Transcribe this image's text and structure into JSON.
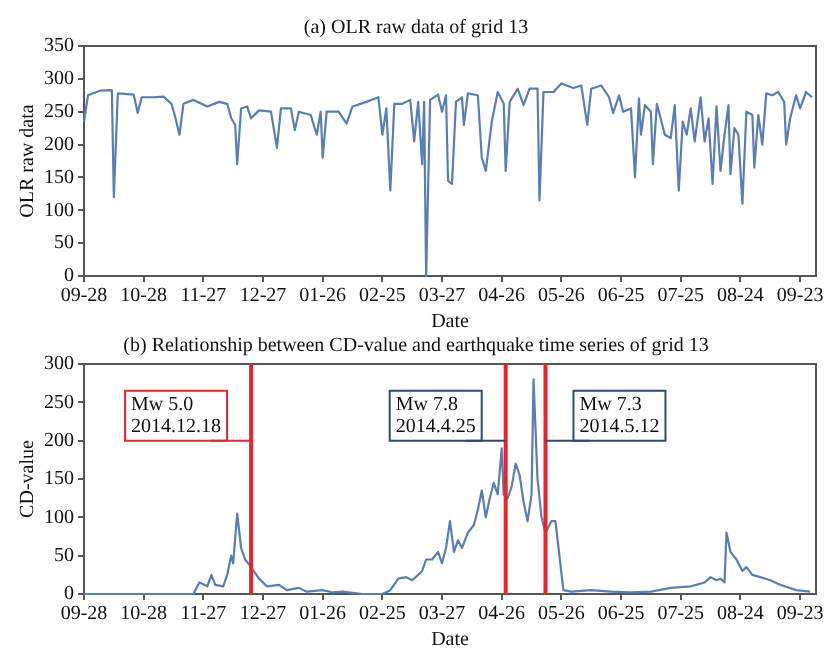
{
  "chart_data": [
    {
      "type": "line",
      "title": "(a) OLR raw data of grid 13",
      "xlabel": "Date",
      "ylabel": "OLR raw data",
      "xlim": [
        "2013-09-28",
        "2014-10-01"
      ],
      "xticks": [
        {
          "value": "2013-09-28",
          "label": "09-28"
        },
        {
          "value": "2013-10-28",
          "label": "10-28"
        },
        {
          "value": "2013-11-27",
          "label": "11-27"
        },
        {
          "value": "2013-12-27",
          "label": "12-27"
        },
        {
          "value": "2014-01-26",
          "label": "01-26"
        },
        {
          "value": "2014-02-25",
          "label": "02-25"
        },
        {
          "value": "2014-03-27",
          "label": "03-27"
        },
        {
          "value": "2014-04-26",
          "label": "04-26"
        },
        {
          "value": "2014-05-26",
          "label": "05-26"
        },
        {
          "value": "2014-06-25",
          "label": "06-25"
        },
        {
          "value": "2014-07-25",
          "label": "07-25"
        },
        {
          "value": "2014-08-24",
          "label": "08-24"
        },
        {
          "value": "2014-09-23",
          "label": "09-23"
        }
      ],
      "ylim": [
        0,
        350
      ],
      "yticks": [
        0,
        50,
        100,
        150,
        200,
        250,
        300,
        350
      ],
      "grid": false,
      "legend": false,
      "marker": "none",
      "series": [
        {
          "color": "#5a7db5",
          "x": [
            "2013-09-28",
            "2013-09-30",
            "2013-10-06",
            "2013-10-12",
            "2013-10-13",
            "2013-10-15",
            "2013-10-23",
            "2013-10-25",
            "2013-10-27",
            "2013-11-02",
            "2013-11-07",
            "2013-11-11",
            "2013-11-13",
            "2013-11-15",
            "2013-11-17",
            "2013-11-22",
            "2013-11-29",
            "2013-12-05",
            "2013-12-09",
            "2013-12-11",
            "2013-12-13",
            "2013-12-14",
            "2013-12-16",
            "2013-12-19",
            "2013-12-21",
            "2013-12-25",
            "2013-12-31",
            "2014-01-03",
            "2014-01-05",
            "2014-01-10",
            "2014-01-12",
            "2014-01-14",
            "2014-01-20",
            "2014-01-23",
            "2014-01-25",
            "2014-01-26",
            "2014-01-28",
            "2014-02-03",
            "2014-02-07",
            "2014-02-10",
            "2014-02-17",
            "2014-02-23",
            "2014-02-25",
            "2014-02-27",
            "2014-03-01",
            "2014-03-03",
            "2014-03-07",
            "2014-03-11",
            "2014-03-13",
            "2014-03-15",
            "2014-03-17",
            "2014-03-18",
            "2014-03-19",
            "2014-03-21",
            "2014-03-25",
            "2014-03-27",
            "2014-03-29",
            "2014-03-30",
            "2014-04-01",
            "2014-04-03",
            "2014-04-06",
            "2014-04-07",
            "2014-04-09",
            "2014-04-14",
            "2014-04-16",
            "2014-04-18",
            "2014-04-21",
            "2014-04-24",
            "2014-04-27",
            "2014-04-28",
            "2014-04-30",
            "2014-05-04",
            "2014-05-07",
            "2014-05-10",
            "2014-05-14",
            "2014-05-15",
            "2014-05-17",
            "2014-05-22",
            "2014-05-26",
            "2014-06-01",
            "2014-06-05",
            "2014-06-08",
            "2014-06-10",
            "2014-06-15",
            "2014-06-19",
            "2014-06-21",
            "2014-06-24",
            "2014-06-26",
            "2014-06-30",
            "2014-07-02",
            "2014-07-04",
            "2014-07-05",
            "2014-07-07",
            "2014-07-10",
            "2014-07-11",
            "2014-07-13",
            "2014-07-17",
            "2014-07-20",
            "2014-07-22",
            "2014-07-24",
            "2014-07-26",
            "2014-07-28",
            "2014-07-30",
            "2014-08-01",
            "2014-08-04",
            "2014-08-06",
            "2014-08-08",
            "2014-08-10",
            "2014-08-12",
            "2014-08-14",
            "2014-08-16",
            "2014-08-18",
            "2014-08-19",
            "2014-08-21",
            "2014-08-23",
            "2014-08-25",
            "2014-08-27",
            "2014-08-30",
            "2014-08-31",
            "2014-09-02",
            "2014-09-04",
            "2014-09-06",
            "2014-09-09",
            "2014-09-12",
            "2014-09-15",
            "2014-09-16",
            "2014-09-18",
            "2014-09-21",
            "2014-09-23",
            "2014-09-26",
            "2014-09-29"
          ],
          "values": [
            235,
            275,
            282,
            283,
            120,
            278,
            276,
            248,
            272,
            272,
            273,
            262,
            240,
            215,
            262,
            268,
            258,
            265,
            262,
            240,
            230,
            170,
            255,
            258,
            240,
            252,
            250,
            195,
            255,
            255,
            222,
            250,
            245,
            215,
            250,
            180,
            250,
            250,
            232,
            258,
            265,
            272,
            215,
            255,
            130,
            262,
            262,
            268,
            205,
            265,
            170,
            265,
            0,
            268,
            276,
            250,
            275,
            145,
            140,
            265,
            272,
            230,
            278,
            275,
            180,
            160,
            235,
            280,
            262,
            160,
            265,
            285,
            260,
            285,
            285,
            115,
            280,
            280,
            293,
            286,
            290,
            230,
            285,
            290,
            272,
            248,
            275,
            250,
            255,
            150,
            270,
            215,
            260,
            250,
            170,
            262,
            215,
            210,
            260,
            130,
            235,
            215,
            255,
            205,
            272,
            205,
            240,
            140,
            258,
            160,
            215,
            260,
            155,
            225,
            215,
            110,
            250,
            245,
            165,
            245,
            200,
            278,
            275,
            280,
            265,
            200,
            240,
            275,
            255,
            280,
            272
          ]
        }
      ]
    },
    {
      "type": "line",
      "title": "(b) Relationship between CD-value and earthquake time series of grid 13",
      "xlabel": "Date",
      "ylabel": "CD-value",
      "xlim": [
        "2013-09-28",
        "2014-10-01"
      ],
      "xticks": [
        {
          "value": "2013-09-28",
          "label": "09-28"
        },
        {
          "value": "2013-10-28",
          "label": "10-28"
        },
        {
          "value": "2013-11-27",
          "label": "11-27"
        },
        {
          "value": "2013-12-27",
          "label": "12-27"
        },
        {
          "value": "2014-01-26",
          "label": "01-26"
        },
        {
          "value": "2014-02-25",
          "label": "02-25"
        },
        {
          "value": "2014-03-27",
          "label": "03-27"
        },
        {
          "value": "2014-04-26",
          "label": "04-26"
        },
        {
          "value": "2014-05-26",
          "label": "05-26"
        },
        {
          "value": "2014-06-25",
          "label": "06-25"
        },
        {
          "value": "2014-07-25",
          "label": "07-25"
        },
        {
          "value": "2014-08-24",
          "label": "08-24"
        },
        {
          "value": "2014-09-23",
          "label": "09-23"
        }
      ],
      "ylim": [
        0,
        300
      ],
      "yticks": [
        0,
        50,
        100,
        150,
        200,
        250,
        300
      ],
      "grid": false,
      "legend": false,
      "marker": "none",
      "ref_lines": [
        {
          "axis": "x",
          "value": "2013-12-21",
          "label": "Mw 5.0\n2014.12.18",
          "color": "#e8252b"
        },
        {
          "axis": "x",
          "value": "2014-04-28",
          "label": "Mw 7.8\n2014.4.25",
          "color": "#e8252b"
        },
        {
          "axis": "x",
          "value": "2014-05-18",
          "label": "Mw 7.3\n2014.5.12",
          "color": "#e8252b"
        }
      ],
      "series": [
        {
          "color": "#5a7db5",
          "x": [
            "2013-09-28",
            "2013-11-22",
            "2013-11-25",
            "2013-11-29",
            "2013-12-01",
            "2013-12-03",
            "2013-12-07",
            "2013-12-09",
            "2013-12-11",
            "2013-12-12",
            "2013-12-14",
            "2013-12-16",
            "2013-12-18",
            "2013-12-21",
            "2013-12-25",
            "2013-12-29",
            "2014-01-04",
            "2014-01-08",
            "2014-01-14",
            "2014-01-18",
            "2014-01-26",
            "2014-01-31",
            "2014-02-05",
            "2014-02-15",
            "2014-02-25",
            "2014-03-01",
            "2014-03-05",
            "2014-03-09",
            "2014-03-12",
            "2014-03-15",
            "2014-03-17",
            "2014-03-19",
            "2014-03-22",
            "2014-03-25",
            "2014-03-27",
            "2014-03-29",
            "2014-03-31",
            "2014-04-02",
            "2014-04-04",
            "2014-04-06",
            "2014-04-09",
            "2014-04-12",
            "2014-04-14",
            "2014-04-16",
            "2014-04-18",
            "2014-04-20",
            "2014-04-22",
            "2014-04-24",
            "2014-04-26",
            "2014-04-27",
            "2014-04-29",
            "2014-05-01",
            "2014-05-03",
            "2014-05-05",
            "2014-05-07",
            "2014-05-09",
            "2014-05-11",
            "2014-05-12",
            "2014-05-14",
            "2014-05-16",
            "2014-05-18",
            "2014-05-21",
            "2014-05-23",
            "2014-05-25",
            "2014-05-27",
            "2014-05-31",
            "2014-06-10",
            "2014-06-20",
            "2014-06-30",
            "2014-07-10",
            "2014-07-20",
            "2014-07-30",
            "2014-08-06",
            "2014-08-09",
            "2014-08-12",
            "2014-08-14",
            "2014-08-16",
            "2014-08-17",
            "2014-08-19",
            "2014-08-22",
            "2014-08-25",
            "2014-08-27",
            "2014-08-30",
            "2014-09-03",
            "2014-09-08",
            "2014-09-13",
            "2014-09-21",
            "2014-09-28"
          ],
          "values": [
            0,
            0,
            15,
            10,
            25,
            12,
            10,
            25,
            50,
            40,
            105,
            60,
            45,
            35,
            20,
            10,
            12,
            5,
            8,
            3,
            5,
            2,
            3,
            0,
            0,
            5,
            20,
            22,
            18,
            25,
            30,
            45,
            45,
            55,
            40,
            60,
            95,
            55,
            70,
            60,
            80,
            90,
            110,
            135,
            100,
            125,
            145,
            130,
            190,
            130,
            125,
            140,
            170,
            155,
            120,
            95,
            130,
            280,
            150,
            100,
            80,
            95,
            95,
            50,
            5,
            3,
            5,
            3,
            2,
            3,
            8,
            10,
            15,
            22,
            18,
            20,
            15,
            80,
            55,
            45,
            30,
            35,
            25,
            22,
            18,
            12,
            5,
            3
          ]
        }
      ]
    }
  ]
}
